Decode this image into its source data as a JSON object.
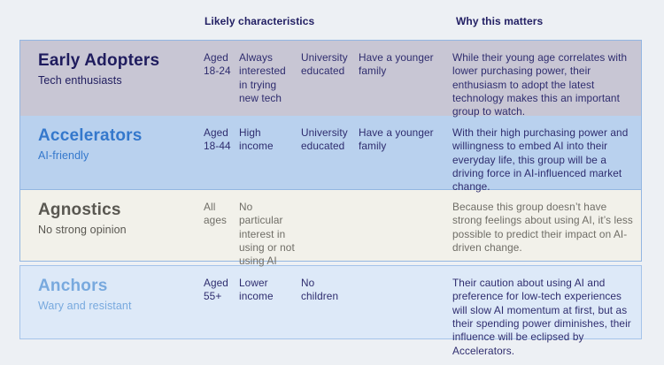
{
  "palette": {
    "page_bg": "#edf0f4",
    "header_text": "#232064",
    "group_border": "#93b6e2",
    "row_divider": "#93b6e2"
  },
  "column_headers": {
    "likely": "Likely characteristics",
    "why": "Why this matters"
  },
  "rows": [
    {
      "title": "Early Adopters",
      "subtitle": "Tech enthusiasts",
      "characteristics": [
        "Aged 18-24",
        "Always interested in trying new tech",
        "University educated",
        "Have a younger family"
      ],
      "why": "While their young age correlates with lower purchasing power, their enthusiasm to adopt the latest technology makes this an important group to watch.",
      "colors": {
        "bg": "#c8c6d4",
        "heading": "#1f1c5e",
        "body": "#2e2c6e"
      }
    },
    {
      "title": "Accelerators",
      "subtitle": "AI-friendly",
      "characteristics": [
        "Aged 18-44",
        "High income",
        "University educated",
        "Have a younger family"
      ],
      "why": "With their high purchasing power and willingness to embed AI into their everyday life, this group will be a driving force in AI-influenced market change.",
      "colors": {
        "bg": "#b9d1ee",
        "heading": "#3478cc",
        "body": "#2e2c6e",
        "border_bottom": "#93b6e2"
      }
    },
    {
      "title": "Agnostics",
      "subtitle": "No strong opinion",
      "characteristics": [
        "All ages",
        "No particular interest in using or not using AI",
        "",
        ""
      ],
      "why": "Because this group doesn’t have strong feelings about using AI, it’s less possible to predict their impact on AI-driven change.",
      "colors": {
        "bg": "#f2f1ea",
        "heading": "#595751",
        "body": "#6f6d66"
      }
    },
    {
      "title": "Anchors",
      "subtitle": "Wary and resistant",
      "characteristics": [
        "Aged 55+",
        "Lower income",
        "No children",
        ""
      ],
      "why": "Their caution about using AI and preference for low-tech experiences will slow AI momentum at first, but as their spending power diminishes, their influence will be eclipsed by Accelerators.",
      "colors": {
        "bg": "#dde9f8",
        "heading": "#78a9de",
        "body": "#2e2c6e",
        "border": "#a5c4ea"
      }
    }
  ]
}
